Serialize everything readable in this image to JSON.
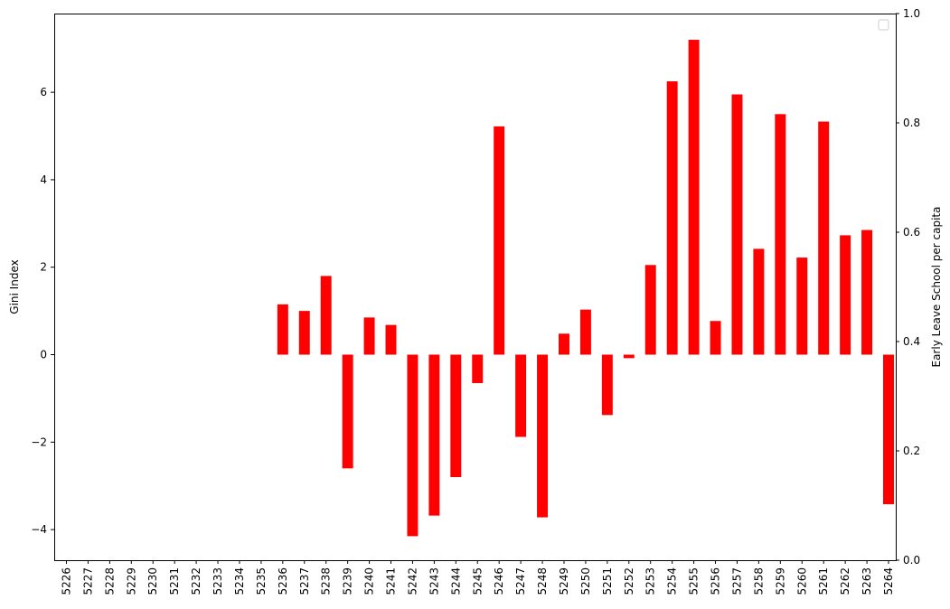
{
  "chart_data": {
    "type": "bar",
    "categories": [
      "5226",
      "5227",
      "5228",
      "5229",
      "5230",
      "5231",
      "5232",
      "5233",
      "5234",
      "5235",
      "5236",
      "5237",
      "5238",
      "5239",
      "5240",
      "5241",
      "5242",
      "5243",
      "5244",
      "5245",
      "5246",
      "5247",
      "5248",
      "5249",
      "5250",
      "5251",
      "5252",
      "5253",
      "5254",
      "5255",
      "5256",
      "5257",
      "5258",
      "5259",
      "5260",
      "5261",
      "5262",
      "5263",
      "5264"
    ],
    "series": [
      {
        "color": "#ff0000",
        "values": [
          null,
          null,
          null,
          null,
          null,
          null,
          null,
          null,
          null,
          null,
          1.15,
          1.0,
          1.8,
          -2.6,
          0.85,
          0.68,
          -4.15,
          -3.68,
          -2.8,
          -0.65,
          5.22,
          -1.88,
          -3.72,
          0.48,
          1.03,
          -1.38,
          -0.08,
          2.05,
          6.25,
          7.2,
          0.77,
          5.95,
          2.42,
          5.5,
          2.22,
          5.33,
          2.73,
          2.85,
          -3.42
        ]
      }
    ],
    "ylabel": "Gini Index",
    "ylabel_right": "Early Leave School per capita",
    "ylim": [
      -4.7,
      7.8
    ],
    "ylim_right": [
      0.0,
      1.0
    ],
    "yticks": [
      -4,
      -2,
      0,
      2,
      4,
      6
    ],
    "yticks_labels": [
      "−4",
      "−2",
      "0",
      "2",
      "4",
      "6"
    ],
    "yticks_right": [
      0.0,
      0.2,
      0.4,
      0.6,
      0.8,
      1.0
    ],
    "yticks_right_labels": [
      "0.0",
      "0.2",
      "0.4",
      "0.6",
      "0.8",
      "1.0"
    ],
    "legend_placement": "upper right",
    "grid": false
  }
}
